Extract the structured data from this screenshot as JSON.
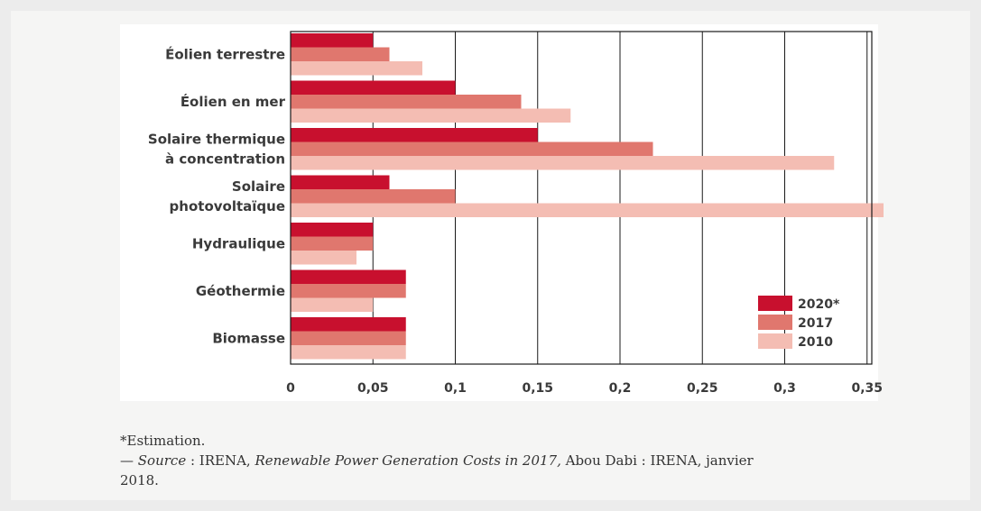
{
  "chart_data": {
    "type": "bar",
    "orientation": "horizontal",
    "categories": [
      [
        "Éolien terrestre"
      ],
      [
        "Éolien en mer"
      ],
      [
        "Solaire thermique",
        "à concentration"
      ],
      [
        "Solaire",
        "photovoltaïque"
      ],
      [
        "Hydraulique"
      ],
      [
        "Géothermie"
      ],
      [
        "Biomasse"
      ]
    ],
    "series": [
      {
        "name": "2020*",
        "color": "#c8102e",
        "values": [
          0.05,
          0.1,
          0.15,
          0.06,
          0.05,
          0.07,
          0.07
        ]
      },
      {
        "name": "2017",
        "color": "#e0776e",
        "values": [
          0.06,
          0.14,
          0.22,
          0.1,
          0.05,
          0.07,
          0.07
        ]
      },
      {
        "name": "2010",
        "color": "#f4bdb3",
        "values": [
          0.08,
          0.17,
          0.33,
          0.36,
          0.04,
          0.05,
          0.07
        ]
      }
    ],
    "x_ticks": [
      0,
      0.05,
      0.1,
      0.15,
      0.2,
      0.25,
      0.3,
      0.35
    ],
    "x_tick_labels": [
      "0",
      "0,05",
      "0,1",
      "0,15",
      "0,2",
      "0,25",
      "0,3",
      "0,35"
    ],
    "xlim": [
      0,
      0.36
    ],
    "grid": "vertical",
    "legend_position": "bottom-right"
  },
  "caption": {
    "note": "*Estimation.",
    "source_prefix": "— ",
    "source_label": "Source",
    "source_sep": " : IRENA, ",
    "source_title": "Renewable Power Generation Costs in 2017,",
    "source_rest": " Abou Dabi : IRENA, janvier",
    "source_year": "2018."
  }
}
